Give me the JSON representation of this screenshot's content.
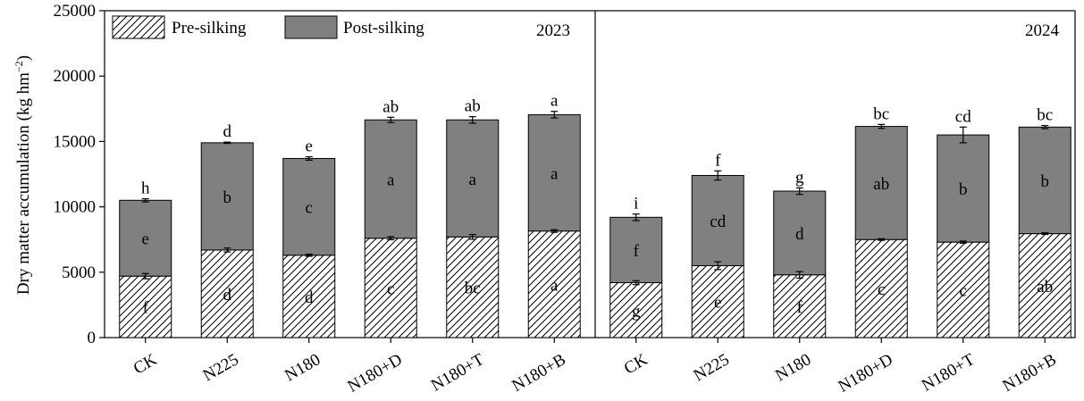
{
  "chart_data": {
    "type": "bar",
    "stacked": true,
    "ylabel": "Dry matter accumulation (kg hm",
    "ylabel_sup": "−2",
    "ylabel_close": ")",
    "ylim": [
      0,
      25000
    ],
    "yticks": [
      0,
      5000,
      10000,
      15000,
      20000,
      25000
    ],
    "legend": {
      "placement": "top-left",
      "items": [
        {
          "name": "Pre-silking",
          "style": "hatched"
        },
        {
          "name": "Post-silking",
          "style": "gray",
          "color": "#808080"
        }
      ]
    },
    "panels": [
      {
        "year": "2023",
        "categories": [
          "CK",
          "N225",
          "N180",
          "N180+D",
          "N180+T",
          "N180+B"
        ],
        "series": [
          {
            "name": "Pre-silking",
            "values": [
              4700,
              6700,
              6300,
              7600,
              7700,
              8150
            ],
            "errors": [
              200,
              150,
              80,
              120,
              180,
              100
            ],
            "letters": [
              "f",
              "d",
              "d",
              "c",
              "bc",
              "a"
            ]
          },
          {
            "name": "Post-silking",
            "values": [
              5800,
              8200,
              7400,
              9050,
              8950,
              8900
            ],
            "letters": [
              "e",
              "b",
              "c",
              "a",
              "a",
              "a"
            ]
          }
        ],
        "total_errors": [
          120,
          50,
          130,
          200,
          250,
          250
        ],
        "total_letters": [
          "h",
          "d",
          "e",
          "ab",
          "ab",
          "a"
        ]
      },
      {
        "year": "2024",
        "categories": [
          "CK",
          "N225",
          "N180",
          "N180+D",
          "N180+T",
          "N180+B"
        ],
        "series": [
          {
            "name": "Pre-silking",
            "values": [
              4200,
              5500,
              4800,
              7500,
              7300,
              7950
            ],
            "errors": [
              150,
              300,
              250,
              60,
              80,
              60
            ],
            "letters": [
              "g",
              "e",
              "f",
              "c",
              "c",
              "ab"
            ]
          },
          {
            "name": "Post-silking",
            "values": [
              5000,
              6900,
              6400,
              8650,
              8200,
              8150
            ],
            "letters": [
              "f",
              "cd",
              "d",
              "ab",
              "b",
              "b"
            ]
          }
        ],
        "total_errors": [
          250,
          350,
          250,
          150,
          600,
          120
        ],
        "total_letters": [
          "i",
          "f",
          "g",
          "bc",
          "cd",
          "bc"
        ]
      }
    ]
  }
}
